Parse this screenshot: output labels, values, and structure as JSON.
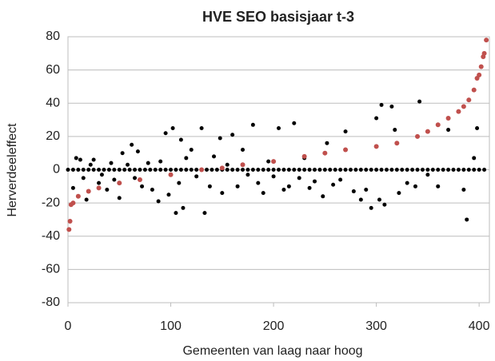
{
  "chart_data": {
    "type": "scatter",
    "title": "HVE SEO basisjaar t-3",
    "xlabel": "Gemeenten van laag naar hoog",
    "ylabel": "Herverdeeleffect",
    "xlim": [
      0,
      410
    ],
    "ylim": [
      -80,
      80
    ],
    "xticks": [
      0,
      100,
      200,
      300,
      400
    ],
    "yticks": [
      -80,
      -60,
      -40,
      -20,
      0,
      20,
      40,
      60,
      80
    ],
    "grid": true,
    "series": [
      {
        "color": "#000000",
        "x": [
          0,
          5,
          10,
          15,
          20,
          25,
          30,
          35,
          40,
          45,
          50,
          55,
          60,
          65,
          70,
          75,
          80,
          85,
          90,
          95,
          100,
          105,
          110,
          115,
          120,
          125,
          130,
          135,
          140,
          145,
          150,
          155,
          160,
          165,
          170,
          175,
          180,
          185,
          190,
          195,
          200,
          205,
          210,
          215,
          220,
          225,
          230,
          235,
          240,
          245,
          250,
          255,
          260,
          265,
          270,
          275,
          280,
          285,
          290,
          295,
          300,
          305,
          310,
          315,
          320,
          325,
          330,
          335,
          340,
          345,
          350,
          355,
          360,
          365,
          370,
          375,
          380,
          385,
          390,
          395,
          400,
          405,
          5,
          8,
          12,
          15,
          18,
          22,
          25,
          30,
          33,
          38,
          42,
          45,
          50,
          53,
          58,
          62,
          65,
          68,
          72,
          78,
          82,
          88,
          90,
          95,
          98,
          102,
          105,
          108,
          110,
          112,
          115,
          120,
          125,
          130,
          133,
          138,
          142,
          148,
          150,
          155,
          160,
          165,
          170,
          175,
          180,
          185,
          190,
          195,
          200,
          205,
          210,
          215,
          220,
          225,
          230,
          235,
          240,
          248,
          252,
          258,
          265,
          270,
          278,
          285,
          290,
          295,
          300,
          303,
          305,
          308,
          315,
          318,
          322,
          330,
          338,
          342,
          350,
          360,
          370,
          385,
          388,
          395,
          398
        ],
        "values": [
          0,
          0,
          0,
          0,
          0,
          0,
          0,
          0,
          0,
          0,
          0,
          0,
          0,
          0,
          0,
          0,
          0,
          0,
          0,
          0,
          0,
          0,
          0,
          0,
          0,
          0,
          0,
          0,
          0,
          0,
          0,
          0,
          0,
          0,
          0,
          0,
          0,
          0,
          0,
          0,
          0,
          0,
          0,
          0,
          0,
          0,
          0,
          0,
          0,
          0,
          0,
          0,
          0,
          0,
          0,
          0,
          0,
          0,
          0,
          0,
          0,
          0,
          0,
          0,
          0,
          0,
          0,
          0,
          0,
          0,
          0,
          0,
          0,
          0,
          0,
          0,
          0,
          0,
          0,
          0,
          0,
          0,
          -11,
          7,
          6,
          -5,
          -18,
          3,
          6,
          -8,
          -3,
          -12,
          4,
          -6,
          -17,
          10,
          3,
          15,
          -5,
          11,
          -10,
          4,
          -12,
          -19,
          5,
          22,
          -15,
          25,
          -26,
          -8,
          18,
          -23,
          7,
          12,
          -4,
          25,
          -26,
          -10,
          8,
          19,
          -14,
          3,
          21,
          -10,
          12,
          -3,
          27,
          -8,
          -14,
          5,
          -4,
          25,
          -12,
          -10,
          28,
          -5,
          7,
          -11,
          -7,
          -16,
          16,
          -9,
          -6,
          23,
          -13,
          -18,
          -12,
          -23,
          31,
          -18,
          39,
          -21,
          38,
          24,
          -14,
          -8,
          -10,
          41,
          -3,
          -10,
          24,
          -12,
          -30,
          7,
          25
        ]
      },
      {
        "color": "#c0504d",
        "x": [
          1,
          2,
          3,
          5,
          10,
          20,
          30,
          50,
          70,
          100,
          130,
          150,
          170,
          200,
          230,
          250,
          270,
          300,
          320,
          340,
          350,
          360,
          370,
          380,
          385,
          390,
          395,
          398,
          400,
          402,
          404,
          405,
          407
        ],
        "values": [
          -36,
          -31,
          -21,
          -20,
          -16,
          -13,
          -11,
          -8,
          -6,
          -3,
          0,
          1,
          3,
          5,
          8,
          10,
          12,
          14,
          16,
          20,
          23,
          27,
          31,
          35,
          38,
          42,
          48,
          55,
          57,
          62,
          68,
          70,
          78
        ]
      }
    ]
  }
}
